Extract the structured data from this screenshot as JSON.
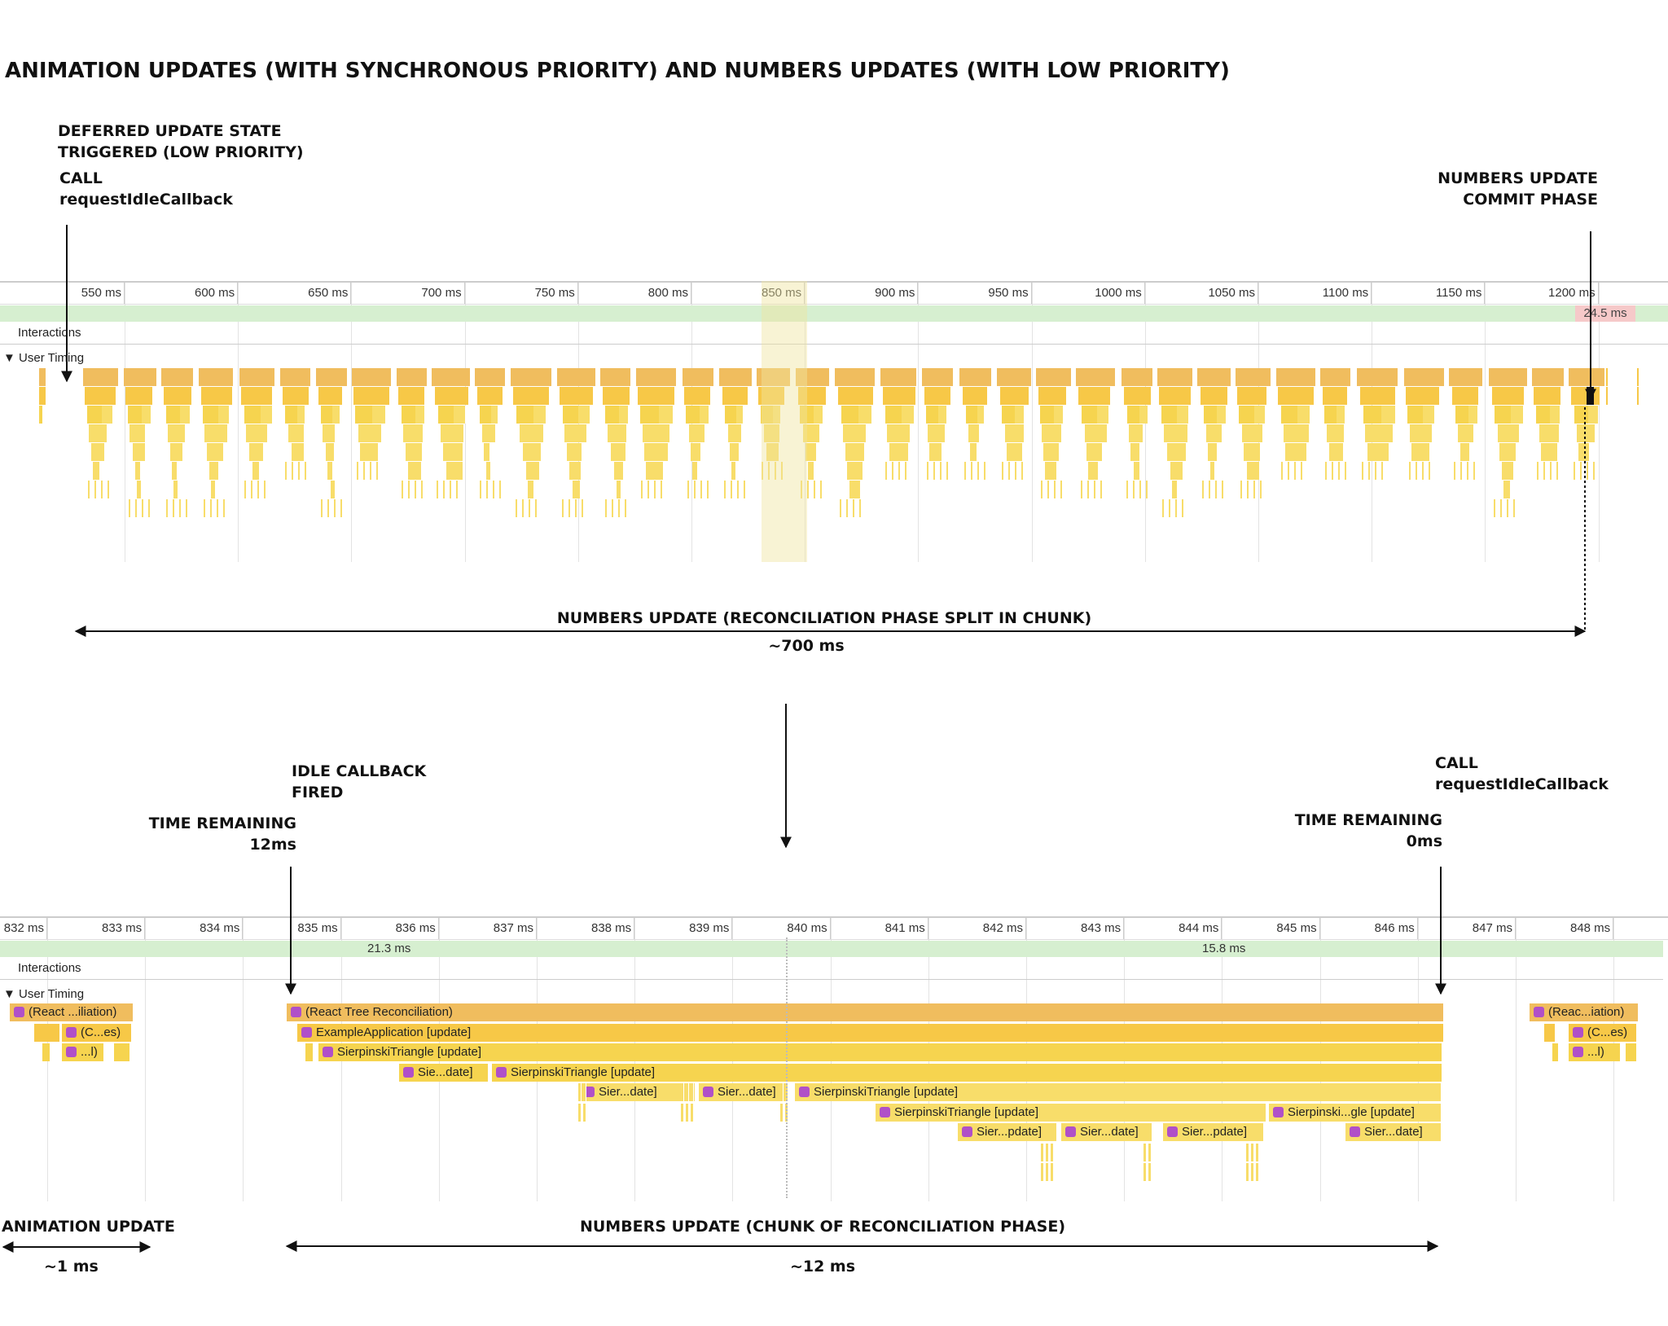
{
  "title": "ANIMATION UPDATES (WITH SYNCHRONOUS PRIORITY) AND NUMBERS UPDATES (WITH LOW PRIORITY)",
  "top": {
    "annotations": {
      "deferred_l1": "DEFERRED UPDATE STATE",
      "deferred_l2": "TRIGGERED (LOW PRIORITY)",
      "call_l1": "CALL",
      "call_l2": "requestIdleCallback",
      "commit_l1": "NUMBERS UPDATE",
      "commit_l2": "COMMIT PHASE",
      "span_label": "NUMBERS UPDATE (RECONCILIATION PHASE SPLIT IN CHUNK)",
      "span_value": "~700 ms"
    },
    "ruler_ticks": [
      "550 ms",
      "600 ms",
      "650 ms",
      "700 ms",
      "750 ms",
      "800 ms",
      "850 ms",
      "900 ms",
      "950 ms",
      "1000 ms",
      "1050 ms",
      "1100 ms",
      "1150 ms",
      "1200 ms"
    ],
    "frame_badge": "24.5 ms",
    "interactions_label": "Interactions",
    "user_timing_label": "User Timing"
  },
  "bottom": {
    "annotations": {
      "fired_l1": "IDLE CALLBACK",
      "fired_l2": "FIRED",
      "remain12_l1": "TIME REMAINING",
      "remain12_l2": "12ms",
      "call_l1": "CALL",
      "call_l2": "requestIdleCallback",
      "remain0_l1": "TIME REMAINING",
      "remain0_l2": "0ms",
      "anim_label": "ANIMATION UPDATE",
      "anim_value": "~1 ms",
      "chunk_label": "NUMBERS UPDATE (CHUNK OF RECONCILIATION PHASE)",
      "chunk_value": "~12 ms"
    },
    "ruler_ticks": [
      "832 ms",
      "833 ms",
      "834 ms",
      "835 ms",
      "836 ms",
      "837 ms",
      "838 ms",
      "839 ms",
      "840 ms",
      "841 ms",
      "842 ms",
      "843 ms",
      "844 ms",
      "845 ms",
      "846 ms",
      "847 ms",
      "848 ms"
    ],
    "frame_labels": [
      "21.3 ms",
      "15.8 ms"
    ],
    "interactions_label": "Interactions",
    "user_timing_label": "User Timing",
    "flames": {
      "react_tree": "(React Tree Reconciliation)",
      "example_app": "ExampleApplication [update]",
      "sierpinski": "SierpinskiTriangle [update]",
      "sierpinski_mid": "Sierpinski...gle [update]",
      "sie_date": "Sie...date]",
      "sier_date": "Sier...date]",
      "sier_pdate": "Sier...pdate]",
      "left_react": "(React ...iliation)",
      "left_ces": "(C...es)",
      "left_l": "...l)",
      "right_react": "(Reac...iation)",
      "right_ces": "(C...es)",
      "right_l": "...l)"
    }
  }
}
